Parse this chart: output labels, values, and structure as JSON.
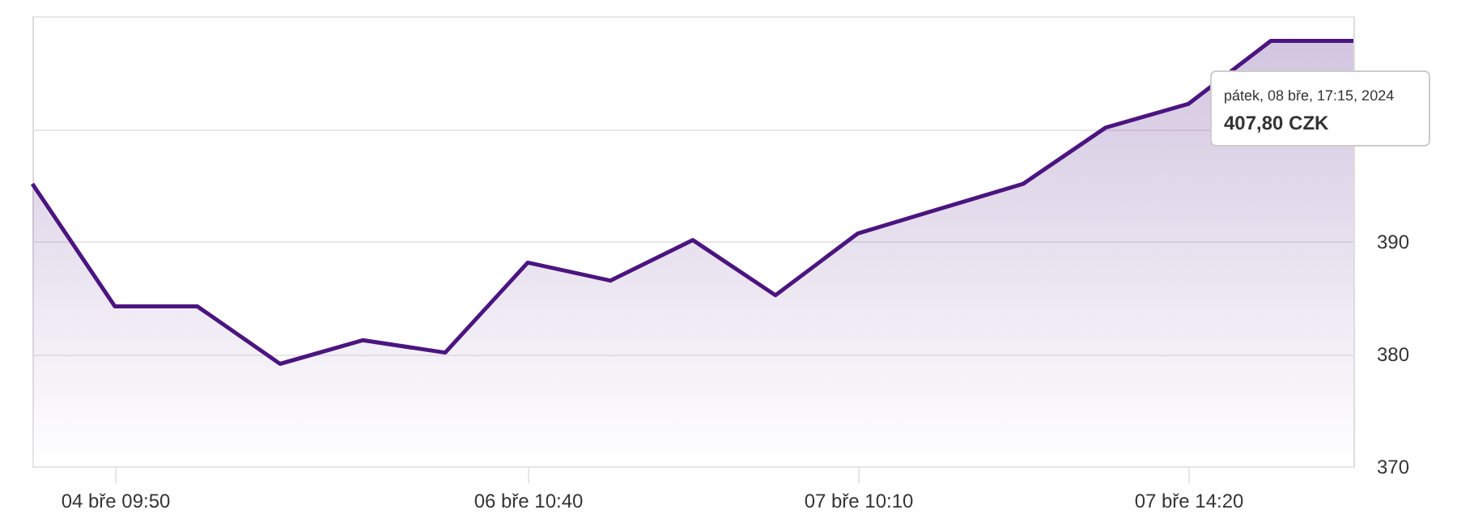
{
  "chart_data": {
    "type": "area",
    "categories": [
      null,
      "04 bře 09:50",
      null,
      null,
      null,
      null,
      "06 bře 10:40",
      null,
      null,
      null,
      "07 bře 10:10",
      null,
      null,
      null,
      "07 bře 14:20",
      null,
      null
    ],
    "series": [
      {
        "color": "#4b1580",
        "values": [
          395.1,
          384.2,
          384.2,
          379.1,
          381.2,
          380.1,
          388.1,
          386.5,
          390.1,
          385.2,
          390.7,
          392.9,
          395.1,
          400.1,
          402.2,
          407.8,
          407.8
        ]
      }
    ],
    "ylim": [
      370,
      410
    ],
    "yticks": [
      370,
      380,
      390,
      {
        "value": 400,
        "label": null
      },
      {
        "value": 410,
        "label": null
      }
    ],
    "grid": "y",
    "annotations": [
      "pátek, 08 bře, 17:15, 2024",
      "407,80 CZK"
    ]
  }
}
